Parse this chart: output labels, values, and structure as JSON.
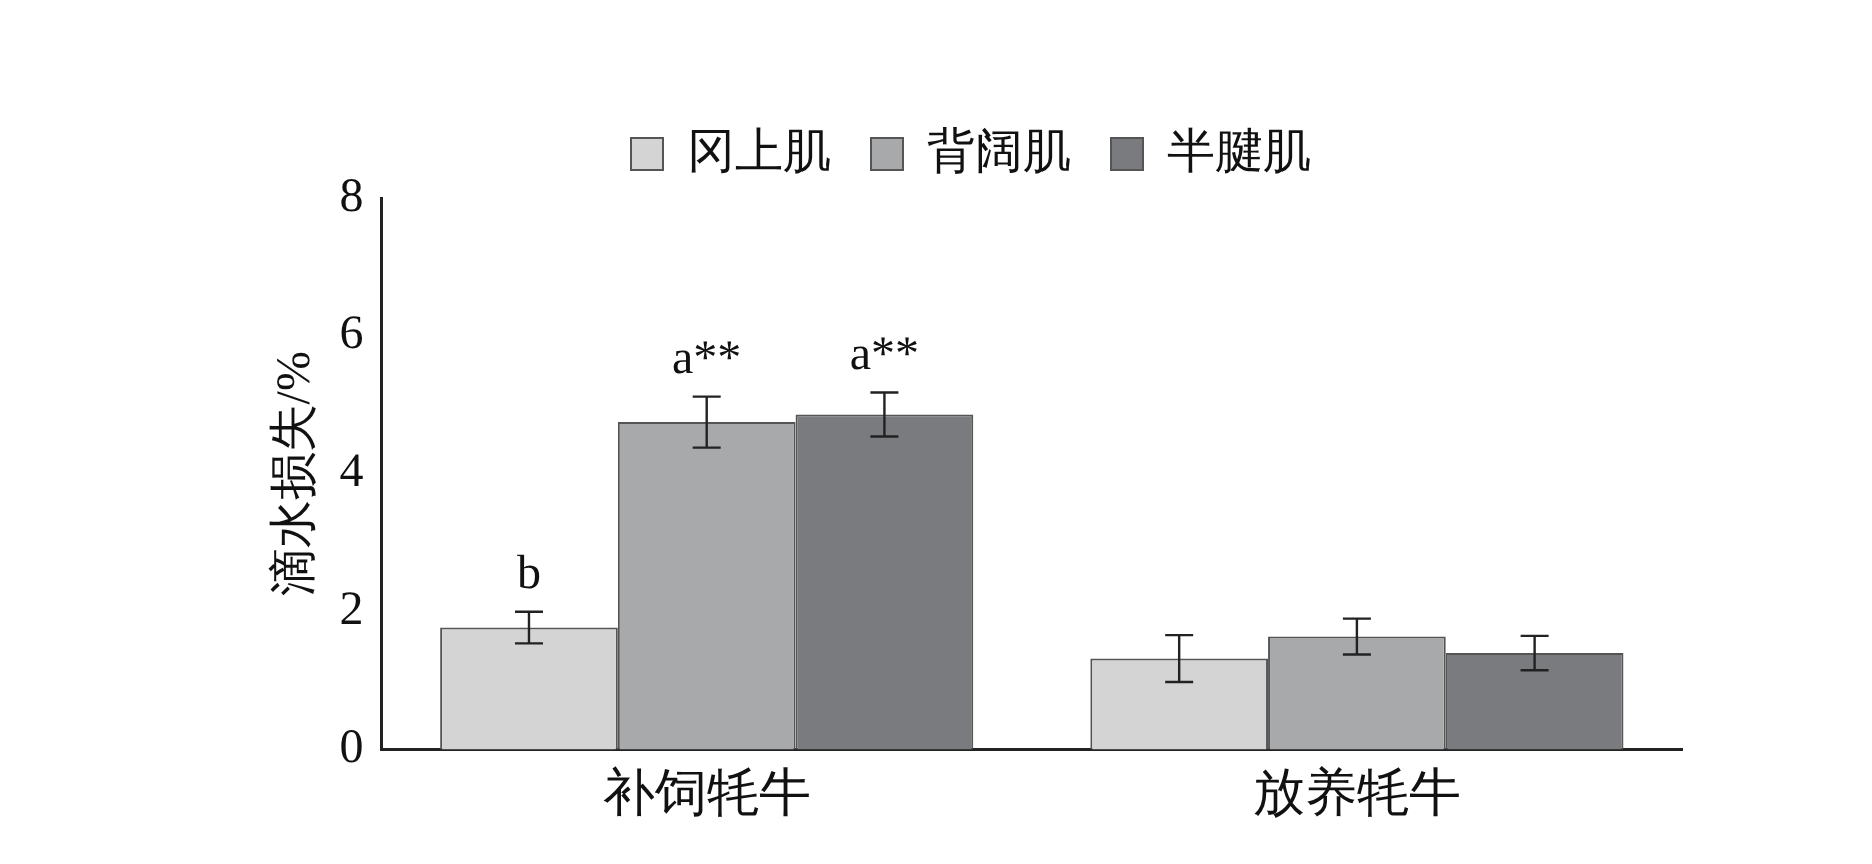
{
  "chart_data": {
    "type": "bar",
    "ylabel": "滴水损失/%",
    "categories": [
      "补饲牦牛",
      "放养牦牛"
    ],
    "series": [
      {
        "name": "冈上肌",
        "color": "#d4d4d4",
        "values": [
          1.77,
          1.32
        ],
        "errors": [
          0.23,
          0.34
        ],
        "value_labels": [
          "b",
          null
        ]
      },
      {
        "name": "背阔肌",
        "color": "#a8a9ab",
        "values": [
          4.75,
          1.64
        ],
        "errors": [
          0.37,
          0.26
        ],
        "value_labels": [
          "a**",
          null
        ]
      },
      {
        "name": "半腱肌",
        "color": "#7a7b7e",
        "values": [
          4.86,
          1.4
        ],
        "errors": [
          0.32,
          0.25
        ],
        "value_labels": [
          "a**",
          null
        ]
      }
    ],
    "ylim": [
      0,
      8
    ],
    "yticks": [
      0,
      2,
      4,
      6,
      8
    ],
    "grid": false,
    "legend": "top"
  }
}
